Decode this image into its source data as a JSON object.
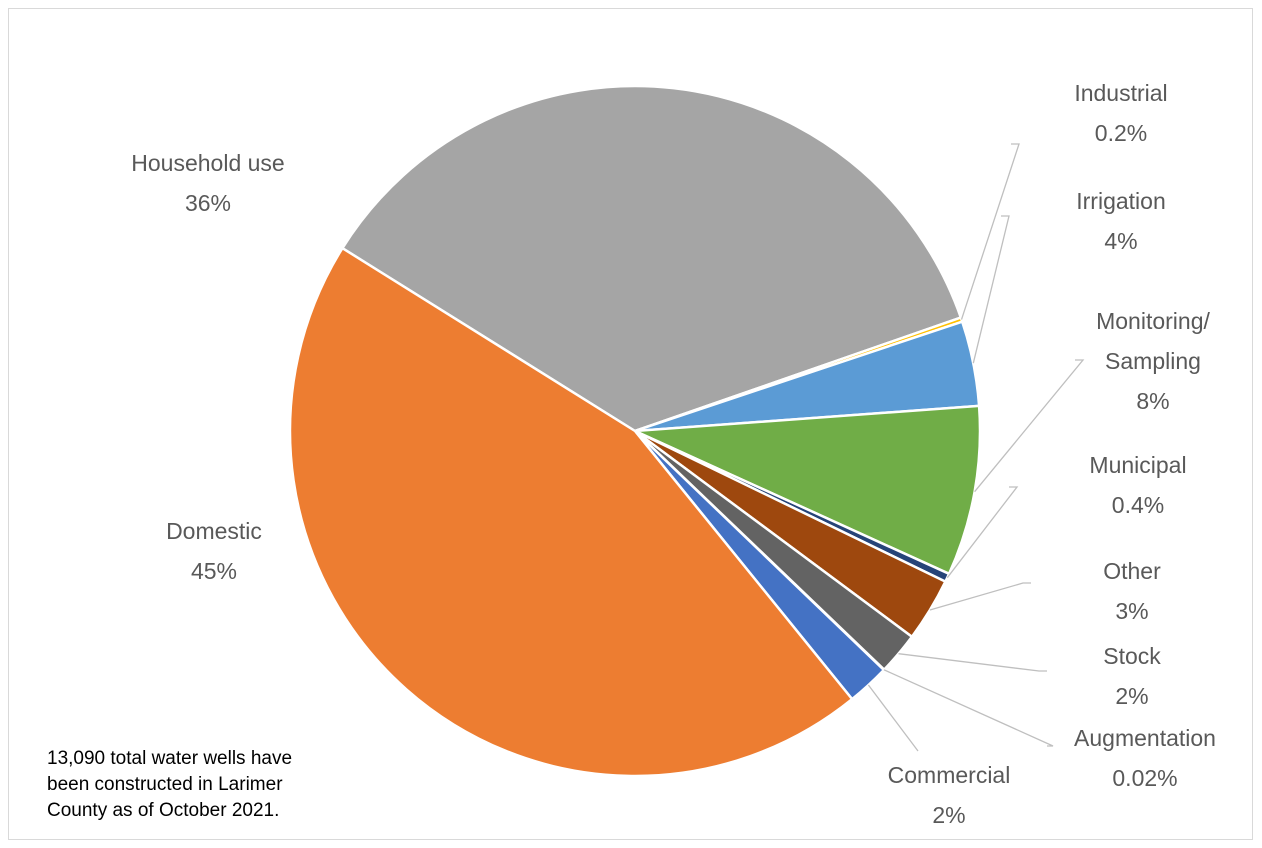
{
  "chart_data": {
    "type": "pie",
    "title": "",
    "slices": [
      {
        "name": "Household use",
        "label": "36%",
        "value": 36,
        "color": "#a5a5a5"
      },
      {
        "name": "Industrial",
        "label": "0.2%",
        "value": 0.2,
        "color": "#ffc000"
      },
      {
        "name": "Irrigation",
        "label": "4%",
        "value": 4,
        "color": "#5b9bd5"
      },
      {
        "name": "Monitoring/ Sampling",
        "label": "8%",
        "value": 8,
        "color": "#70ad47"
      },
      {
        "name": "Municipal",
        "label": "0.4%",
        "value": 0.4,
        "color": "#264478"
      },
      {
        "name": "Other",
        "label": "3%",
        "value": 3,
        "color": "#9e480e"
      },
      {
        "name": "Stock",
        "label": "2%",
        "value": 2,
        "color": "#636363"
      },
      {
        "name": "Augmentation",
        "label": "0.02%",
        "value": 0.02,
        "color": "#997300"
      },
      {
        "name": "Commercial",
        "label": "2%",
        "value": 2,
        "color": "#4472c4"
      },
      {
        "name": "Domestic",
        "label": "45%",
        "value": 45,
        "color": "#ed7d31"
      }
    ]
  },
  "note": "13,090 total water wells have\nbeen constructed in Larimer\nCounty as of October 2021."
}
